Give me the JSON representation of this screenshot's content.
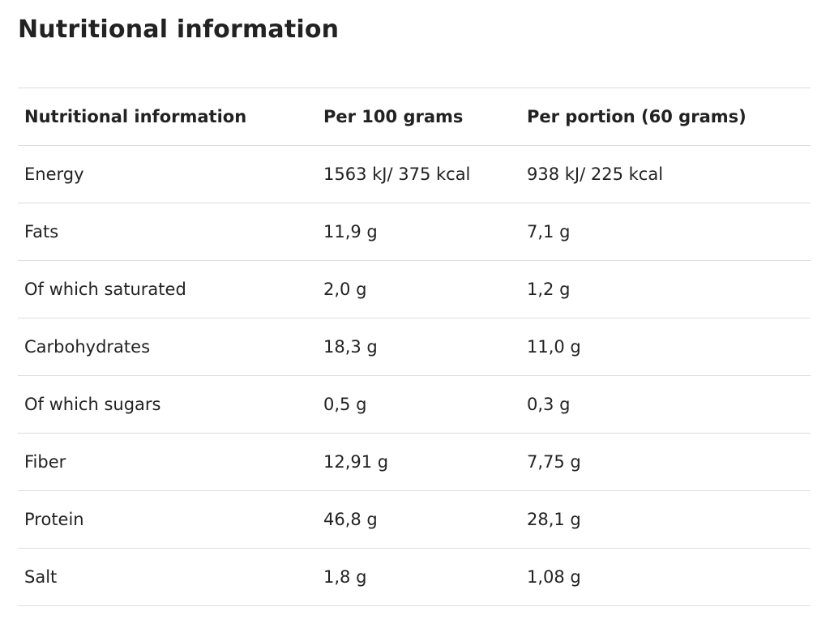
{
  "page": {
    "title": "Nutritional information"
  },
  "table": {
    "headers": [
      "Nutritional information",
      "Per 100 grams",
      "Per portion (60 grams)"
    ],
    "rows": [
      [
        "Energy",
        "1563 kJ/ 375 kcal",
        "938 kJ/ 225 kcal"
      ],
      [
        "Fats",
        "11,9 g",
        "7,1 g"
      ],
      [
        "Of which saturated",
        "2,0 g",
        "1,2 g"
      ],
      [
        "Carbohydrates",
        "18,3 g",
        "11,0 g"
      ],
      [
        "Of which sugars",
        "0,5 g",
        "0,3 g"
      ],
      [
        "Fiber",
        "12,91 g",
        "7,75 g"
      ],
      [
        "Protein",
        "46,8 g",
        "28,1 g"
      ],
      [
        "Salt",
        "1,8 g",
        "1,08 g"
      ]
    ]
  }
}
